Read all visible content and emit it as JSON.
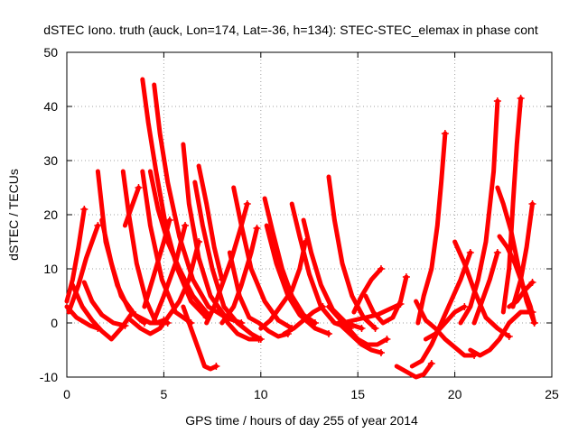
{
  "chart_data": {
    "type": "scatter",
    "title": "dSTEC Iono. truth (auck, Lon=174, Lat=-36, h=134): STEC-STEC_elemax in phase cont",
    "xlabel": "GPS time / hours of day 255 of year 2014",
    "ylabel": "dSTEC  / TECUs",
    "xlim": [
      0,
      25
    ],
    "ylim": [
      -10,
      50
    ],
    "xticks": [
      0,
      5,
      10,
      15,
      20,
      25
    ],
    "yticks": [
      -10,
      0,
      10,
      20,
      30,
      40,
      50
    ],
    "grid": true,
    "marker": "+",
    "color": "#ff0000",
    "arcs": [
      [
        [
          0.0,
          4
        ],
        [
          0.3,
          8
        ],
        [
          0.6,
          14
        ],
        [
          0.9,
          21
        ]
      ],
      [
        [
          0.0,
          3
        ],
        [
          0.5,
          1
        ],
        [
          1.2,
          -0.5
        ],
        [
          1.6,
          -1
        ]
      ],
      [
        [
          0.1,
          2
        ],
        [
          0.6,
          7
        ],
        [
          1.0,
          12
        ],
        [
          1.4,
          16
        ],
        [
          1.6,
          18
        ]
      ],
      [
        [
          1.6,
          28
        ],
        [
          2.0,
          15
        ],
        [
          2.6,
          7
        ],
        [
          3.2,
          2.5
        ],
        [
          3.8,
          0.5
        ],
        [
          4.0,
          0
        ]
      ],
      [
        [
          1.8,
          19
        ],
        [
          2.3,
          11
        ],
        [
          2.8,
          5
        ],
        [
          3.5,
          1.5
        ],
        [
          4.3,
          0
        ],
        [
          5.2,
          0
        ]
      ],
      [
        [
          0.3,
          7
        ],
        [
          0.8,
          3
        ],
        [
          1.3,
          0.5
        ],
        [
          1.8,
          -1.5
        ],
        [
          2.3,
          -3
        ],
        [
          2.8,
          -1
        ],
        [
          3.4,
          2
        ]
      ],
      [
        [
          0.9,
          7.5
        ],
        [
          1.3,
          4
        ],
        [
          1.8,
          1.5
        ],
        [
          2.4,
          0
        ],
        [
          3.0,
          -0.5
        ]
      ],
      [
        [
          2.9,
          28
        ],
        [
          3.2,
          20
        ],
        [
          3.6,
          11
        ],
        [
          4.1,
          4
        ],
        [
          4.6,
          0
        ],
        [
          5.0,
          0.5
        ]
      ],
      [
        [
          3.0,
          18
        ],
        [
          3.4,
          22
        ],
        [
          3.7,
          25
        ]
      ],
      [
        [
          3.9,
          28
        ],
        [
          4.3,
          18
        ],
        [
          4.9,
          8
        ],
        [
          5.6,
          2
        ],
        [
          6.4,
          0
        ]
      ],
      [
        [
          3.9,
          45
        ],
        [
          4.2,
          37
        ],
        [
          4.6,
          28
        ],
        [
          5.1,
          18
        ],
        [
          5.7,
          10
        ],
        [
          6.4,
          4
        ],
        [
          7.2,
          1
        ]
      ],
      [
        [
          4.5,
          44
        ],
        [
          4.8,
          35
        ],
        [
          5.2,
          26
        ],
        [
          5.8,
          16
        ],
        [
          6.5,
          8
        ],
        [
          7.3,
          3
        ],
        [
          8.2,
          1
        ]
      ],
      [
        [
          4.3,
          28
        ],
        [
          4.7,
          21
        ],
        [
          5.2,
          15
        ],
        [
          5.8,
          10
        ],
        [
          6.5,
          5
        ],
        [
          7.3,
          1.5
        ]
      ],
      [
        [
          4.0,
          3
        ],
        [
          4.5,
          9
        ],
        [
          5.0,
          15
        ],
        [
          5.3,
          19
        ]
      ],
      [
        [
          4.5,
          0.5
        ],
        [
          5.0,
          5
        ],
        [
          5.6,
          11
        ],
        [
          6.1,
          18
        ]
      ],
      [
        [
          3.3,
          0.5
        ],
        [
          3.8,
          -1
        ],
        [
          4.3,
          -2
        ],
        [
          4.8,
          -1
        ],
        [
          5.3,
          1.5
        ],
        [
          5.8,
          4
        ],
        [
          6.3,
          8
        ],
        [
          6.8,
          15
        ]
      ],
      [
        [
          6.0,
          33
        ],
        [
          6.3,
          22
        ],
        [
          6.8,
          12
        ],
        [
          7.4,
          5
        ],
        [
          8.2,
          1
        ],
        [
          9.0,
          0
        ]
      ],
      [
        [
          6.0,
          3
        ],
        [
          6.4,
          -1
        ],
        [
          6.8,
          -5
        ],
        [
          7.1,
          -8
        ],
        [
          7.4,
          -8.5
        ],
        [
          7.7,
          -8
        ]
      ],
      [
        [
          6.6,
          26
        ],
        [
          7.0,
          18
        ],
        [
          7.5,
          10
        ],
        [
          8.1,
          3
        ],
        [
          8.8,
          0
        ],
        [
          9.5,
          -2
        ],
        [
          10.0,
          -3
        ]
      ],
      [
        [
          6.8,
          29
        ],
        [
          7.2,
          22
        ],
        [
          7.6,
          14
        ],
        [
          8.0,
          8
        ]
      ],
      [
        [
          7.2,
          0
        ],
        [
          7.6,
          3
        ],
        [
          8.0,
          7
        ],
        [
          8.5,
          12
        ],
        [
          9.0,
          18
        ],
        [
          9.3,
          22
        ]
      ],
      [
        [
          8.6,
          25
        ],
        [
          9.0,
          18
        ],
        [
          9.5,
          10
        ],
        [
          10.2,
          4
        ],
        [
          10.9,
          0.5
        ],
        [
          11.6,
          -1
        ]
      ],
      [
        [
          7.8,
          3
        ],
        [
          8.3,
          0
        ],
        [
          8.8,
          -2
        ],
        [
          9.4,
          -3
        ],
        [
          9.9,
          -3
        ]
      ],
      [
        [
          8.4,
          13
        ],
        [
          8.9,
          5
        ],
        [
          9.4,
          1
        ],
        [
          9.9,
          0
        ],
        [
          10.4,
          -1.5
        ],
        [
          10.9,
          -2.5
        ],
        [
          11.4,
          -2
        ]
      ],
      [
        [
          8.0,
          0
        ],
        [
          8.6,
          3
        ],
        [
          9.0,
          7
        ],
        [
          9.5,
          13
        ],
        [
          9.8,
          17.5
        ]
      ],
      [
        [
          10.2,
          23
        ],
        [
          10.6,
          17
        ],
        [
          11.1,
          10
        ],
        [
          11.6,
          5
        ],
        [
          12.2,
          1.5
        ],
        [
          12.8,
          0
        ]
      ],
      [
        [
          10.3,
          18
        ],
        [
          10.8,
          11
        ],
        [
          11.4,
          5
        ],
        [
          12.0,
          1.5
        ],
        [
          12.8,
          -1
        ],
        [
          13.5,
          -2
        ]
      ],
      [
        [
          11.6,
          22
        ],
        [
          12.0,
          16
        ],
        [
          12.5,
          9
        ],
        [
          13.1,
          3
        ],
        [
          13.8,
          0
        ],
        [
          14.6,
          -1
        ]
      ],
      [
        [
          12.2,
          19
        ],
        [
          12.6,
          13
        ],
        [
          13.1,
          7
        ],
        [
          13.7,
          2.5
        ],
        [
          14.4,
          0
        ],
        [
          15.2,
          -1
        ]
      ],
      [
        [
          10.0,
          -1
        ],
        [
          10.5,
          0.5
        ],
        [
          11.0,
          3
        ],
        [
          11.6,
          6
        ],
        [
          12.0,
          10
        ],
        [
          12.3,
          15
        ]
      ],
      [
        [
          11.2,
          -2
        ],
        [
          11.7,
          -1
        ],
        [
          12.2,
          0.5
        ],
        [
          12.7,
          2
        ],
        [
          13.2,
          3
        ]
      ],
      [
        [
          13.5,
          27
        ],
        [
          13.8,
          19
        ],
        [
          14.2,
          11
        ],
        [
          14.7,
          5
        ],
        [
          15.3,
          1
        ],
        [
          15.9,
          -1
        ]
      ],
      [
        [
          13.5,
          3
        ],
        [
          14.0,
          1
        ],
        [
          14.5,
          -1
        ],
        [
          15.0,
          -3
        ],
        [
          15.5,
          -4
        ],
        [
          16.0,
          -4
        ],
        [
          16.5,
          -3
        ]
      ],
      [
        [
          14.0,
          0
        ],
        [
          14.6,
          -2
        ],
        [
          15.2,
          -4
        ],
        [
          15.7,
          -5
        ],
        [
          16.2,
          -5.5
        ]
      ],
      [
        [
          14.8,
          2
        ],
        [
          15.2,
          5
        ],
        [
          15.7,
          8
        ],
        [
          16.2,
          10
        ]
      ],
      [
        [
          15.4,
          5
        ],
        [
          15.8,
          2
        ],
        [
          16.3,
          0
        ],
        [
          16.8,
          1
        ],
        [
          17.2,
          4
        ],
        [
          17.5,
          8.5
        ]
      ],
      [
        [
          14.2,
          0
        ],
        [
          14.8,
          0.5
        ],
        [
          15.4,
          1
        ],
        [
          16.0,
          1.5
        ],
        [
          16.6,
          2.5
        ],
        [
          17.2,
          3.5
        ]
      ],
      [
        [
          17.0,
          -8
        ],
        [
          17.5,
          -9
        ],
        [
          18.0,
          -10
        ],
        [
          18.4,
          -9.5
        ],
        [
          18.8,
          -7.5
        ]
      ],
      [
        [
          18.0,
          4
        ],
        [
          18.5,
          0.5
        ],
        [
          19.0,
          -1
        ],
        [
          19.5,
          -3
        ],
        [
          20.0,
          -4.5
        ],
        [
          20.5,
          -6
        ],
        [
          21.0,
          -6
        ]
      ],
      [
        [
          18.1,
          0
        ],
        [
          18.4,
          5
        ],
        [
          18.8,
          10
        ],
        [
          19.1,
          18
        ],
        [
          19.3,
          26
        ],
        [
          19.5,
          35
        ]
      ],
      [
        [
          17.8,
          -8
        ],
        [
          18.3,
          -7
        ],
        [
          18.8,
          -4
        ],
        [
          19.3,
          0
        ],
        [
          19.8,
          4
        ],
        [
          20.3,
          8
        ],
        [
          20.8,
          13
        ]
      ],
      [
        [
          18.5,
          -3
        ],
        [
          19.0,
          -2
        ],
        [
          19.5,
          0
        ],
        [
          20.0,
          2
        ],
        [
          20.5,
          3
        ]
      ],
      [
        [
          20.0,
          15
        ],
        [
          20.5,
          11
        ],
        [
          21.0,
          6
        ],
        [
          21.6,
          1
        ],
        [
          22.2,
          -1
        ],
        [
          22.8,
          -2.5
        ]
      ],
      [
        [
          20.8,
          -5
        ],
        [
          21.3,
          -6
        ],
        [
          21.8,
          -5
        ],
        [
          22.3,
          -3
        ],
        [
          22.8,
          0
        ],
        [
          23.4,
          2
        ],
        [
          24.0,
          2
        ]
      ],
      [
        [
          20.3,
          0
        ],
        [
          20.8,
          3
        ],
        [
          21.2,
          8
        ],
        [
          21.6,
          15
        ],
        [
          22.0,
          28
        ],
        [
          22.2,
          41
        ]
      ],
      [
        [
          21.0,
          0
        ],
        [
          21.4,
          4
        ],
        [
          21.8,
          8
        ],
        [
          22.2,
          13
        ]
      ],
      [
        [
          22.2,
          25
        ],
        [
          22.5,
          22
        ],
        [
          22.9,
          17
        ],
        [
          23.3,
          10
        ],
        [
          23.7,
          4
        ],
        [
          24.1,
          0
        ]
      ],
      [
        [
          22.3,
          16
        ],
        [
          22.7,
          14
        ],
        [
          23.1,
          11
        ],
        [
          23.5,
          7
        ],
        [
          23.9,
          3
        ],
        [
          24.1,
          0
        ]
      ],
      [
        [
          22.5,
          2
        ],
        [
          22.8,
          10
        ],
        [
          23.0,
          22
        ],
        [
          23.2,
          33
        ],
        [
          23.4,
          41.5
        ]
      ],
      [
        [
          23.0,
          3
        ],
        [
          23.4,
          8
        ],
        [
          23.7,
          14
        ],
        [
          24.0,
          22
        ]
      ],
      [
        [
          22.8,
          3
        ],
        [
          23.2,
          4
        ],
        [
          23.6,
          6
        ],
        [
          24.0,
          7.5
        ]
      ]
    ]
  }
}
